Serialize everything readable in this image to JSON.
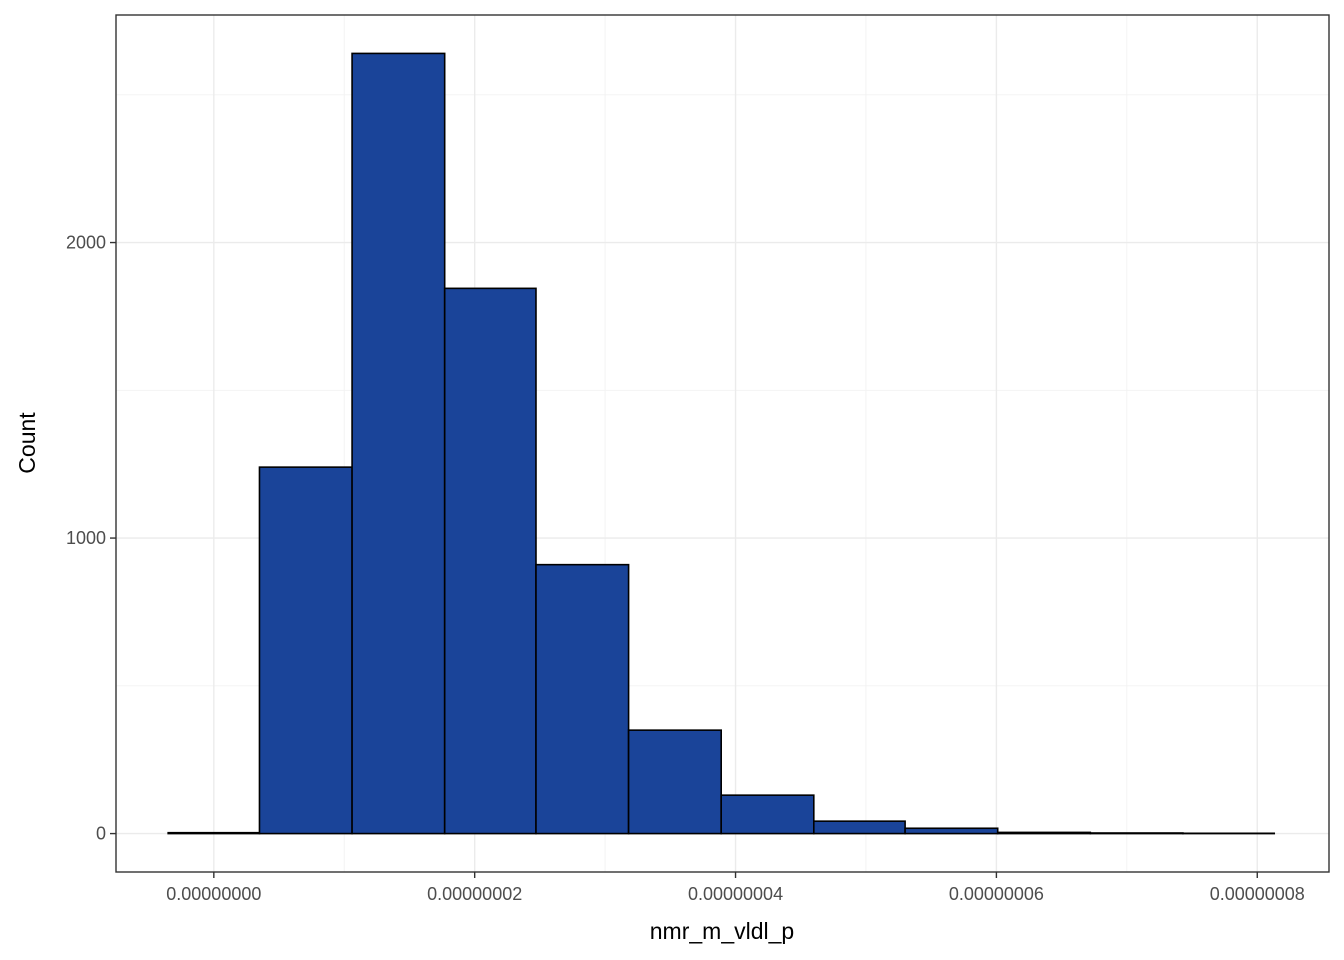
{
  "chart_data": {
    "type": "bar",
    "xlabel": "nmr_m_vldl_p",
    "ylabel": "Count",
    "fill_color": "#1a4499",
    "outline_color": "#000000",
    "xlim": [
      -7.5e-09,
      8.55e-08
    ],
    "ylim": [
      -130,
      2770
    ],
    "x_ticks": [
      {
        "value": 0,
        "label": "0.00000000"
      },
      {
        "value": 2e-08,
        "label": "0.00000002"
      },
      {
        "value": 4e-08,
        "label": "0.00000004"
      },
      {
        "value": 6e-08,
        "label": "0.00000006"
      },
      {
        "value": 8e-08,
        "label": "0.00000008"
      }
    ],
    "y_ticks": [
      {
        "value": 0,
        "label": "0"
      },
      {
        "value": 1000,
        "label": "1000"
      },
      {
        "value": 2000,
        "label": "2000"
      }
    ],
    "grid": true,
    "bins": [
      {
        "x0": -3.5e-09,
        "x1": 3.5e-09,
        "count": 3
      },
      {
        "x0": 3.5e-09,
        "x1": 1.06e-08,
        "count": 1240
      },
      {
        "x0": 1.06e-08,
        "x1": 1.77e-08,
        "count": 2640
      },
      {
        "x0": 1.77e-08,
        "x1": 2.47e-08,
        "count": 1845
      },
      {
        "x0": 2.47e-08,
        "x1": 3.18e-08,
        "count": 910
      },
      {
        "x0": 3.18e-08,
        "x1": 3.89e-08,
        "count": 350
      },
      {
        "x0": 3.89e-08,
        "x1": 4.6e-08,
        "count": 130
      },
      {
        "x0": 4.6e-08,
        "x1": 5.3e-08,
        "count": 42
      },
      {
        "x0": 5.3e-08,
        "x1": 6.01e-08,
        "count": 18
      },
      {
        "x0": 6.01e-08,
        "x1": 6.72e-08,
        "count": 4
      },
      {
        "x0": 6.72e-08,
        "x1": 7.43e-08,
        "count": 2
      },
      {
        "x0": 7.43e-08,
        "x1": 8.13e-08,
        "count": 1
      }
    ]
  }
}
